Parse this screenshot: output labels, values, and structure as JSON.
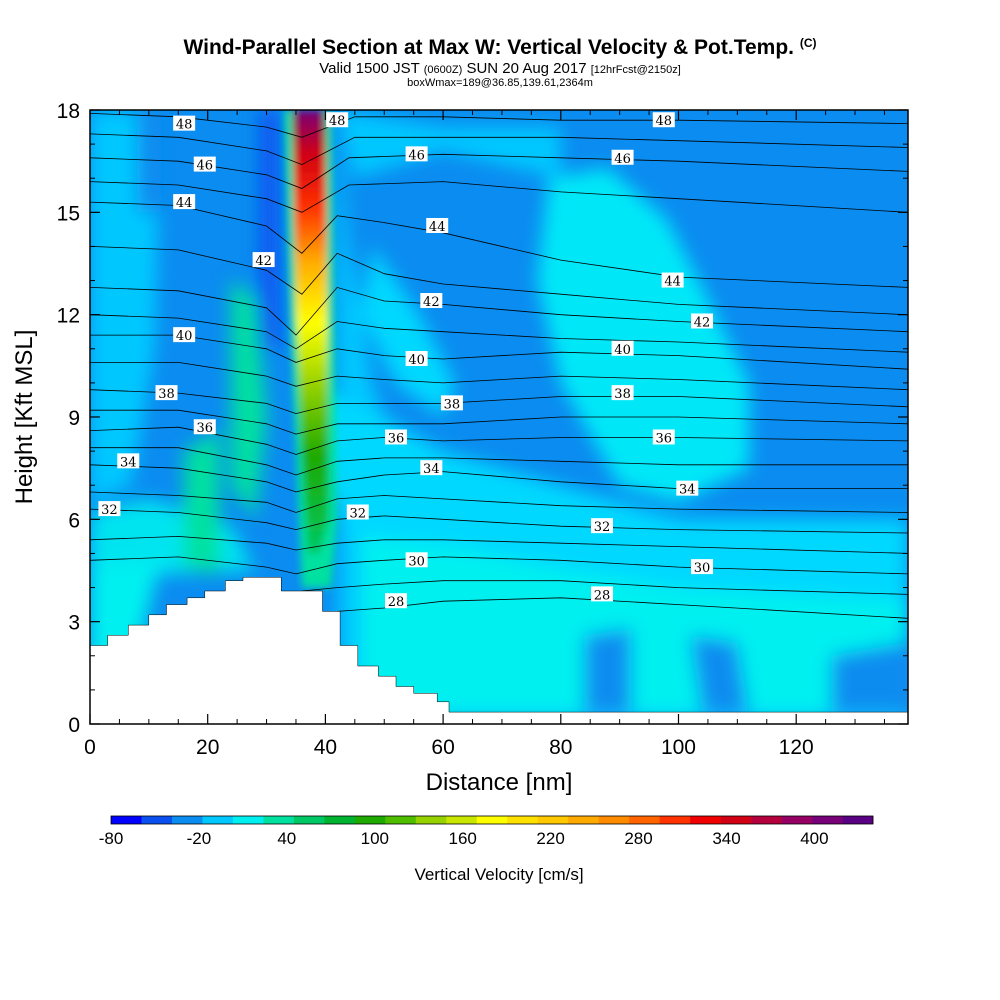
{
  "title": {
    "main": "Wind-Parallel Section at Max W: Vertical Velocity & Pot.Temp.",
    "main_tag": "(C)",
    "valid_a": "Valid 1500 JST",
    "valid_b": "(0600Z)",
    "valid_c": "SUN 20 Aug 2017",
    "valid_d": "[12hrFcst@2150z]",
    "box": "boxWmax=189@36.85,139.61,2364m"
  },
  "chart_data": {
    "type": "heatmap",
    "xlabel": "Distance [nm]",
    "ylabel": "Height [Kft MSL]",
    "xlim": [
      0,
      139
    ],
    "ylim": [
      0,
      18
    ],
    "xticks": [
      0,
      20,
      40,
      60,
      80,
      100,
      120
    ],
    "yticks": [
      0,
      3,
      6,
      9,
      12,
      15,
      18
    ],
    "colorbar": {
      "label": "Vertical Velocity [cm/s]",
      "range": [
        -80,
        440
      ],
      "tick_labels": [
        "-80",
        "-20",
        "40",
        "100",
        "160",
        "220",
        "280",
        "340",
        "400"
      ],
      "colors": [
        "#0000ff",
        "#0a50f0",
        "#0a8cf0",
        "#00c8ff",
        "#00f0f0",
        "#00e1a0",
        "#00c864",
        "#00b432",
        "#1eaa00",
        "#50be00",
        "#96d200",
        "#c8e600",
        "#ffff00",
        "#ffe100",
        "#ffc800",
        "#ffaa00",
        "#ff8c00",
        "#ff6400",
        "#ff3200",
        "#f00000",
        "#d20014",
        "#b4003c",
        "#960064",
        "#780078",
        "#5a0082"
      ]
    },
    "contour_labels": [
      {
        "text": "48",
        "x": 16,
        "y": 17.6
      },
      {
        "text": "48",
        "x": 42,
        "y": 17.7
      },
      {
        "text": "48",
        "x": 97.5,
        "y": 17.7
      },
      {
        "text": "46",
        "x": 19.5,
        "y": 16.4
      },
      {
        "text": "46",
        "x": 55.5,
        "y": 16.7
      },
      {
        "text": "46",
        "x": 90.5,
        "y": 16.6
      },
      {
        "text": "44",
        "x": 16,
        "y": 15.3
      },
      {
        "text": "44",
        "x": 59,
        "y": 14.6
      },
      {
        "text": "44",
        "x": 99,
        "y": 13.0
      },
      {
        "text": "42",
        "x": 29.5,
        "y": 13.6
      },
      {
        "text": "42",
        "x": 58,
        "y": 12.4
      },
      {
        "text": "42",
        "x": 104,
        "y": 11.8
      },
      {
        "text": "40",
        "x": 16,
        "y": 11.4
      },
      {
        "text": "40",
        "x": 55.5,
        "y": 10.7
      },
      {
        "text": "40",
        "x": 90.5,
        "y": 11.0
      },
      {
        "text": "38",
        "x": 13,
        "y": 9.7
      },
      {
        "text": "38",
        "x": 61.5,
        "y": 9.4
      },
      {
        "text": "38",
        "x": 90.5,
        "y": 9.7
      },
      {
        "text": "36",
        "x": 19.5,
        "y": 8.7
      },
      {
        "text": "36",
        "x": 52,
        "y": 8.4
      },
      {
        "text": "36",
        "x": 97.5,
        "y": 8.4
      },
      {
        "text": "34",
        "x": 6.5,
        "y": 7.7
      },
      {
        "text": "34",
        "x": 58,
        "y": 7.5
      },
      {
        "text": "34",
        "x": 101.5,
        "y": 6.9
      },
      {
        "text": "32",
        "x": 3.3,
        "y": 6.3
      },
      {
        "text": "32",
        "x": 45.5,
        "y": 6.2
      },
      {
        "text": "32",
        "x": 87,
        "y": 5.8
      },
      {
        "text": "30",
        "x": 55.5,
        "y": 4.8
      },
      {
        "text": "30",
        "x": 104,
        "y": 4.6
      },
      {
        "text": "28",
        "x": 52,
        "y": 3.6
      },
      {
        "text": "28",
        "x": 87,
        "y": 3.8
      }
    ],
    "isentropes": [
      {
        "value": 48,
        "points": [
          [
            0,
            17.9
          ],
          [
            15,
            17.8
          ],
          [
            30,
            17.5
          ],
          [
            36,
            17.2
          ],
          [
            45,
            17.8
          ],
          [
            60,
            17.8
          ],
          [
            80,
            17.7
          ],
          [
            100,
            17.7
          ],
          [
            139,
            17.6
          ]
        ]
      },
      {
        "value": 47,
        "points": [
          [
            0,
            17.3
          ],
          [
            15,
            17.2
          ],
          [
            30,
            16.8
          ],
          [
            36,
            16.4
          ],
          [
            45,
            17.2
          ],
          [
            60,
            17.2
          ],
          [
            80,
            17.2
          ],
          [
            100,
            17.1
          ],
          [
            139,
            16.9
          ]
        ]
      },
      {
        "value": 46,
        "points": [
          [
            0,
            16.6
          ],
          [
            15,
            16.5
          ],
          [
            30,
            16.1
          ],
          [
            36,
            15.7
          ],
          [
            44,
            16.6
          ],
          [
            60,
            16.7
          ],
          [
            80,
            16.6
          ],
          [
            100,
            16.5
          ],
          [
            139,
            16.2
          ]
        ]
      },
      {
        "value": 45,
        "points": [
          [
            0,
            15.9
          ],
          [
            15,
            15.8
          ],
          [
            30,
            15.4
          ],
          [
            36,
            15.0
          ],
          [
            44,
            15.8
          ],
          [
            60,
            15.9
          ],
          [
            80,
            15.6
          ],
          [
            100,
            15.4
          ],
          [
            139,
            15.0
          ]
        ]
      },
      {
        "value": 44,
        "points": [
          [
            0,
            15.3
          ],
          [
            15,
            15.2
          ],
          [
            30,
            14.6
          ],
          [
            36,
            13.8
          ],
          [
            42,
            14.9
          ],
          [
            50,
            14.7
          ],
          [
            60,
            14.4
          ],
          [
            80,
            13.6
          ],
          [
            100,
            13.1
          ],
          [
            139,
            12.8
          ]
        ]
      },
      {
        "value": 43,
        "points": [
          [
            0,
            14.0
          ],
          [
            15,
            13.9
          ],
          [
            30,
            13.3
          ],
          [
            36,
            12.6
          ],
          [
            42,
            13.8
          ],
          [
            50,
            13.2
          ],
          [
            60,
            12.9
          ],
          [
            80,
            12.6
          ],
          [
            100,
            12.3
          ],
          [
            139,
            12.0
          ]
        ]
      },
      {
        "value": 42,
        "points": [
          [
            0,
            12.8
          ],
          [
            15,
            12.7
          ],
          [
            30,
            12.2
          ],
          [
            35,
            11.4
          ],
          [
            42,
            12.8
          ],
          [
            50,
            12.4
          ],
          [
            60,
            12.3
          ],
          [
            80,
            12.0
          ],
          [
            100,
            11.8
          ],
          [
            139,
            11.5
          ]
        ]
      },
      {
        "value": 41,
        "points": [
          [
            0,
            12.0
          ],
          [
            15,
            11.9
          ],
          [
            30,
            11.5
          ],
          [
            35,
            11.0
          ],
          [
            42,
            11.8
          ],
          [
            50,
            11.6
          ],
          [
            60,
            11.5
          ],
          [
            80,
            11.3
          ],
          [
            100,
            11.2
          ],
          [
            139,
            10.9
          ]
        ]
      },
      {
        "value": 40,
        "points": [
          [
            0,
            11.4
          ],
          [
            15,
            11.4
          ],
          [
            30,
            11.0
          ],
          [
            35,
            10.6
          ],
          [
            42,
            11.0
          ],
          [
            50,
            10.8
          ],
          [
            60,
            10.7
          ],
          [
            80,
            10.9
          ],
          [
            100,
            10.8
          ],
          [
            139,
            10.4
          ]
        ]
      },
      {
        "value": 39,
        "points": [
          [
            0,
            10.6
          ],
          [
            15,
            10.6
          ],
          [
            30,
            10.2
          ],
          [
            35,
            9.9
          ],
          [
            42,
            10.2
          ],
          [
            50,
            10.1
          ],
          [
            60,
            10.0
          ],
          [
            80,
            10.2
          ],
          [
            100,
            10.1
          ],
          [
            139,
            9.8
          ]
        ]
      },
      {
        "value": 38,
        "points": [
          [
            0,
            9.8
          ],
          [
            15,
            9.7
          ],
          [
            30,
            9.4
          ],
          [
            35,
            9.1
          ],
          [
            42,
            9.4
          ],
          [
            50,
            9.4
          ],
          [
            60,
            9.4
          ],
          [
            80,
            9.6
          ],
          [
            100,
            9.6
          ],
          [
            139,
            9.3
          ]
        ]
      },
      {
        "value": 37,
        "points": [
          [
            0,
            9.2
          ],
          [
            15,
            9.2
          ],
          [
            30,
            8.8
          ],
          [
            35,
            8.5
          ],
          [
            42,
            8.8
          ],
          [
            50,
            8.8
          ],
          [
            60,
            8.8
          ],
          [
            80,
            9.0
          ],
          [
            100,
            9.0
          ],
          [
            139,
            8.8
          ]
        ]
      },
      {
        "value": 36,
        "points": [
          [
            0,
            8.6
          ],
          [
            15,
            8.7
          ],
          [
            30,
            8.2
          ],
          [
            35,
            7.9
          ],
          [
            42,
            8.3
          ],
          [
            50,
            8.4
          ],
          [
            60,
            8.3
          ],
          [
            80,
            8.4
          ],
          [
            100,
            8.4
          ],
          [
            139,
            8.3
          ]
        ]
      },
      {
        "value": 35,
        "points": [
          [
            0,
            8.1
          ],
          [
            15,
            8.1
          ],
          [
            30,
            7.6
          ],
          [
            35,
            7.3
          ],
          [
            42,
            7.7
          ],
          [
            50,
            7.8
          ],
          [
            60,
            7.8
          ],
          [
            80,
            7.7
          ],
          [
            100,
            7.6
          ],
          [
            139,
            7.6
          ]
        ]
      },
      {
        "value": 34,
        "points": [
          [
            0,
            7.6
          ],
          [
            15,
            7.5
          ],
          [
            30,
            7.1
          ],
          [
            35,
            6.8
          ],
          [
            42,
            7.1
          ],
          [
            50,
            7.3
          ],
          [
            60,
            7.4
          ],
          [
            80,
            7.1
          ],
          [
            100,
            6.9
          ],
          [
            139,
            6.9
          ]
        ]
      },
      {
        "value": 33,
        "points": [
          [
            0,
            6.8
          ],
          [
            15,
            6.7
          ],
          [
            30,
            6.5
          ],
          [
            35,
            6.2
          ],
          [
            42,
            6.6
          ],
          [
            50,
            6.7
          ],
          [
            60,
            6.6
          ],
          [
            80,
            6.4
          ],
          [
            100,
            6.3
          ],
          [
            139,
            6.2
          ]
        ]
      },
      {
        "value": 32,
        "points": [
          [
            0,
            6.3
          ],
          [
            15,
            6.2
          ],
          [
            30,
            5.9
          ],
          [
            35,
            5.7
          ],
          [
            42,
            6.0
          ],
          [
            50,
            6.1
          ],
          [
            60,
            6.0
          ],
          [
            80,
            5.8
          ],
          [
            100,
            5.7
          ],
          [
            139,
            5.6
          ]
        ]
      },
      {
        "value": 31,
        "points": [
          [
            0,
            5.4
          ],
          [
            15,
            5.5
          ],
          [
            30,
            5.3
          ],
          [
            35,
            5.1
          ],
          [
            42,
            5.3
          ],
          [
            50,
            5.4
          ],
          [
            60,
            5.4
          ],
          [
            80,
            5.3
          ],
          [
            100,
            5.2
          ],
          [
            139,
            5.0
          ]
        ]
      },
      {
        "value": 30,
        "points": [
          [
            0,
            4.8
          ],
          [
            15,
            4.9
          ],
          [
            30,
            4.6
          ],
          [
            35,
            4.4
          ],
          [
            42,
            4.7
          ],
          [
            50,
            4.8
          ],
          [
            60,
            4.9
          ],
          [
            80,
            4.8
          ],
          [
            100,
            4.6
          ],
          [
            139,
            4.4
          ]
        ]
      },
      {
        "value": 29,
        "points": [
          [
            36,
            3.9
          ],
          [
            42,
            4.0
          ],
          [
            50,
            4.1
          ],
          [
            60,
            4.2
          ],
          [
            80,
            4.2
          ],
          [
            100,
            4.0
          ],
          [
            139,
            3.8
          ]
        ]
      },
      {
        "value": 28,
        "points": [
          [
            42,
            3.3
          ],
          [
            50,
            3.4
          ],
          [
            60,
            3.6
          ],
          [
            80,
            3.7
          ],
          [
            100,
            3.5
          ],
          [
            139,
            3.1
          ]
        ]
      }
    ],
    "terrain": [
      [
        0,
        0
      ],
      [
        0,
        2.3
      ],
      [
        3,
        2.3
      ],
      [
        3,
        2.6
      ],
      [
        6.5,
        2.6
      ],
      [
        6.5,
        2.9
      ],
      [
        10,
        2.9
      ],
      [
        10,
        3.2
      ],
      [
        13,
        3.2
      ],
      [
        13,
        3.5
      ],
      [
        16.5,
        3.5
      ],
      [
        16.5,
        3.7
      ],
      [
        19.5,
        3.7
      ],
      [
        19.5,
        3.9
      ],
      [
        23,
        3.9
      ],
      [
        23,
        4.2
      ],
      [
        26,
        4.2
      ],
      [
        26,
        4.3
      ],
      [
        32.5,
        4.3
      ],
      [
        32.5,
        3.9
      ],
      [
        39.5,
        3.9
      ],
      [
        39.5,
        3.3
      ],
      [
        42.5,
        3.3
      ],
      [
        42.5,
        2.3
      ],
      [
        45.5,
        2.3
      ],
      [
        45.5,
        1.7
      ],
      [
        49,
        1.7
      ],
      [
        49,
        1.4
      ],
      [
        52,
        1.4
      ],
      [
        52,
        1.1
      ],
      [
        55,
        1.1
      ],
      [
        55,
        0.9
      ],
      [
        59,
        0.9
      ],
      [
        59,
        0.65
      ],
      [
        61,
        0.65
      ],
      [
        61,
        0.35
      ],
      [
        139,
        0.35
      ],
      [
        139,
        0
      ]
    ]
  }
}
